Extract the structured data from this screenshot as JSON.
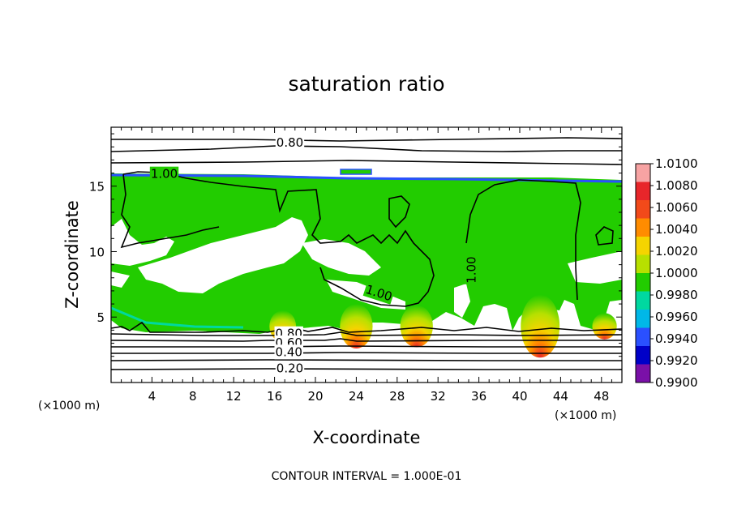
{
  "chart_data": {
    "type": "heatmap",
    "title": "saturation ratio",
    "xlabel": "X-coordinate",
    "ylabel": "Z-coordinate",
    "x_unit_left": "(×1000 m)",
    "x_unit_right": "(×1000 m)",
    "xlim": [
      0,
      50
    ],
    "ylim": [
      0,
      19.5
    ],
    "xticks": [
      4,
      8,
      12,
      16,
      20,
      24,
      28,
      32,
      36,
      40,
      44,
      48
    ],
    "yticks": [
      5,
      10,
      15
    ],
    "footnote": "CONTOUR INTERVAL = 1.000E-01",
    "colorbar": {
      "labels": [
        "1.0100",
        "1.0080",
        "1.0060",
        "1.0040",
        "1.0020",
        "1.0000",
        "0.9980",
        "0.9960",
        "0.9940",
        "0.9920",
        "0.9900"
      ],
      "colors": [
        "#f7a3a3",
        "#e8262a",
        "#f24a1a",
        "#ff8c00",
        "#f5d400",
        "#b8e000",
        "#22cc00",
        "#00d8a0",
        "#00b8e8",
        "#2a50ff",
        "#0000c8",
        "#7a10a8"
      ]
    },
    "contour_labels": [
      {
        "text": "0.80",
        "x": 17.5,
        "y": 18.3
      },
      {
        "text": "1.00",
        "x": 5.2,
        "y": 15.9
      },
      {
        "text": "1.00",
        "x": 35.3,
        "y": 8.6
      },
      {
        "text": "1.00",
        "x": 26.2,
        "y": 6.8
      },
      {
        "text": "0.80",
        "x": 17.4,
        "y": 3.7
      },
      {
        "text": "0.60",
        "x": 17.4,
        "y": 3.0
      },
      {
        "text": "0.40",
        "x": 17.4,
        "y": 2.3
      },
      {
        "text": "0.20",
        "x": 17.5,
        "y": 1.05
      }
    ],
    "hot_spots": [
      {
        "x": 16.8,
        "y": 4.3,
        "w": 1.3,
        "h": 1.2
      },
      {
        "x": 24.0,
        "y": 4.3,
        "w": 1.6,
        "h": 1.7
      },
      {
        "x": 29.9,
        "y": 4.3,
        "w": 1.6,
        "h": 1.6
      },
      {
        "x": 42.0,
        "y": 4.3,
        "w": 1.9,
        "h": 2.4
      },
      {
        "x": 48.3,
        "y": 4.3,
        "w": 1.2,
        "h": 1.0
      }
    ]
  }
}
